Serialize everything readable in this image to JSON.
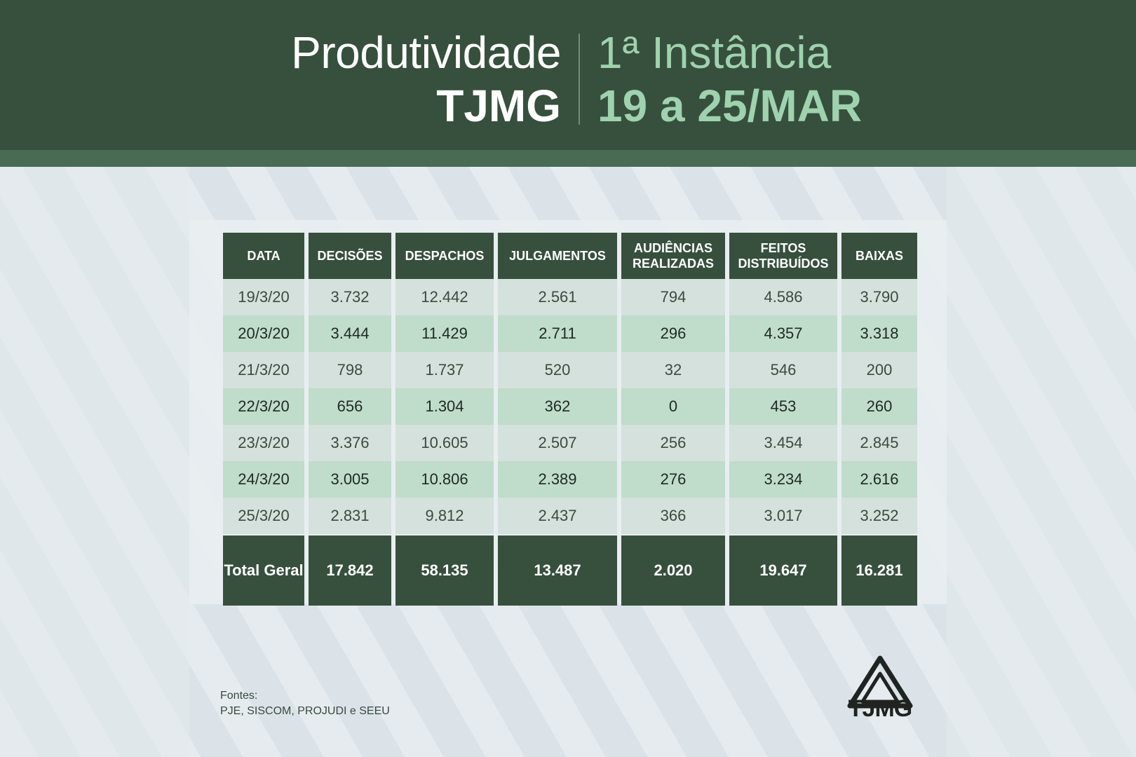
{
  "header": {
    "title_left_line1": "Produtividade",
    "title_left_line2": "TJMG",
    "title_right_line1": "1ª Instância",
    "title_right_line2": "19 a 25/MAR"
  },
  "colors": {
    "header_bg": "#37503d",
    "accent_green": "#9fd2ae",
    "row_light": "#d4e1dc",
    "row_green": "#c0dccb"
  },
  "chart_data": {
    "type": "table",
    "columns": [
      "DATA",
      "DECISÕES",
      "DESPACHOS",
      "JULGAMENTOS",
      "AUDIÊNCIAS REALIZADAS",
      "FEITOS DISTRIBUÍDOS",
      "BAIXAS"
    ],
    "rows": [
      [
        "19/3/20",
        "3.732",
        "12.442",
        "2.561",
        "794",
        "4.586",
        "3.790"
      ],
      [
        "20/3/20",
        "3.444",
        "11.429",
        "2.711",
        "296",
        "4.357",
        "3.318"
      ],
      [
        "21/3/20",
        "798",
        "1.737",
        "520",
        "32",
        "546",
        "200"
      ],
      [
        "22/3/20",
        "656",
        "1.304",
        "362",
        "0",
        "453",
        "260"
      ],
      [
        "23/3/20",
        "3.376",
        "10.605",
        "2.507",
        "256",
        "3.454",
        "2.845"
      ],
      [
        "24/3/20",
        "3.005",
        "10.806",
        "2.389",
        "276",
        "3.234",
        "2.616"
      ],
      [
        "25/3/20",
        "2.831",
        "9.812",
        "2.437",
        "366",
        "3.017",
        "3.252"
      ]
    ],
    "total_label": "Total Geral",
    "totals": [
      "17.842",
      "58.135",
      "13.487",
      "2.020",
      "19.647",
      "16.281"
    ]
  },
  "footer": {
    "sources_label": "Fontes:",
    "sources": "PJE, SISCOM, PROJUDI e SEEU",
    "logo_text": "TJMG"
  }
}
